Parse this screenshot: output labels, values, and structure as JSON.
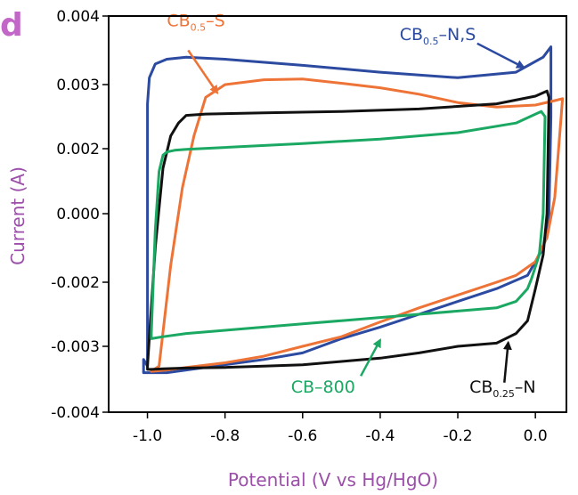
{
  "panel_label": "d",
  "chart_data": {
    "type": "line",
    "xlabel": "Potential (V vs Hg/HgO)",
    "ylabel": "Current  (A)",
    "xlim": [
      -1.1,
      0.08
    ],
    "ylim": [
      -0.004,
      0.004
    ],
    "x_ticks": [
      -1.0,
      -0.8,
      -0.6,
      -0.4,
      -0.2,
      0.0
    ],
    "x_tick_labels": [
      "-1.0",
      "-0.8",
      "-0.6",
      "-0.4",
      "-0.2",
      "0.0"
    ],
    "y_ticks": [
      -0.004,
      -0.003,
      -0.002,
      0.0,
      0.002,
      0.003,
      0.004
    ],
    "y_tick_labels": [
      "-0.004",
      "-0.003",
      "-0.002",
      "0.000",
      "0.002",
      "0.003",
      "0.004"
    ],
    "grid": false,
    "series": [
      {
        "name": "CB0.5–N,S",
        "color": "#2b4aa0",
        "x": [
          -1.0,
          -1.0,
          -0.995,
          -0.98,
          -0.95,
          -0.9,
          -0.8,
          -0.6,
          -0.4,
          -0.2,
          -0.05,
          0.02,
          0.04,
          0.04,
          0.035,
          0.02,
          -0.02,
          -0.1,
          -0.2,
          -0.3,
          -0.4,
          -0.5,
          -0.6,
          -0.7,
          -0.8,
          -0.9,
          -0.95,
          -0.99,
          -1.01,
          -1.01,
          -1.0
        ],
        "y": [
          -0.0033,
          0.0027,
          0.0031,
          0.0033,
          0.00337,
          0.0034,
          0.00337,
          0.00328,
          0.00318,
          0.0031,
          0.00318,
          0.0034,
          0.00355,
          0.0025,
          0.0,
          -0.001,
          -0.0018,
          -0.0021,
          -0.0023,
          -0.0025,
          -0.0027,
          -0.00288,
          -0.0031,
          -0.0032,
          -0.00328,
          -0.00336,
          -0.0034,
          -0.0034,
          -0.0034,
          -0.0032,
          -0.0033
        ]
      },
      {
        "name": "CB0.5–S",
        "color": "#ee7337",
        "x": [
          -0.97,
          -0.94,
          -0.91,
          -0.88,
          -0.85,
          -0.8,
          -0.7,
          -0.6,
          -0.5,
          -0.4,
          -0.3,
          -0.2,
          -0.1,
          0.0,
          0.05,
          0.07,
          0.065,
          0.05,
          0.03,
          0.0,
          -0.05,
          -0.1,
          -0.2,
          -0.3,
          -0.4,
          -0.5,
          -0.6,
          -0.7,
          -0.8,
          -0.9,
          -0.95,
          -0.99,
          -0.97
        ],
        "y": [
          -0.0033,
          -0.0015,
          0.0008,
          0.0022,
          0.0028,
          0.003,
          0.00307,
          0.00308,
          0.00302,
          0.00295,
          0.00285,
          0.00272,
          0.00265,
          0.00268,
          0.00275,
          0.00278,
          0.0024,
          0.0005,
          -0.0007,
          -0.0014,
          -0.0018,
          -0.002,
          -0.0022,
          -0.0024,
          -0.00262,
          -0.00285,
          -0.003,
          -0.00315,
          -0.00325,
          -0.00332,
          -0.00336,
          -0.00338,
          -0.0033
        ]
      },
      {
        "name": "CB0.25–N",
        "color": "#111111",
        "x": [
          -1.0,
          -0.98,
          -0.96,
          -0.94,
          -0.92,
          -0.9,
          -0.85,
          -0.7,
          -0.5,
          -0.3,
          -0.1,
          0.0,
          0.03,
          0.035,
          0.03,
          0.02,
          0.0,
          -0.02,
          -0.05,
          -0.1,
          -0.2,
          -0.3,
          -0.4,
          -0.5,
          -0.6,
          -0.7,
          -0.8,
          -0.9,
          -0.96,
          -0.99,
          -1.0,
          -1.0
        ],
        "y": [
          -0.0033,
          -0.001,
          0.0014,
          0.0022,
          0.0024,
          0.00252,
          0.00254,
          0.00256,
          0.00258,
          0.00262,
          0.0027,
          0.00282,
          0.0029,
          0.0028,
          0.0,
          -0.0012,
          -0.0021,
          -0.0026,
          -0.0028,
          -0.00295,
          -0.003,
          -0.0031,
          -0.00318,
          -0.00323,
          -0.00328,
          -0.0033,
          -0.00332,
          -0.00333,
          -0.00334,
          -0.00335,
          -0.00335,
          -0.0033
        ]
      },
      {
        "name": "CB–800",
        "color": "#1aa862",
        "x": [
          -0.99,
          -0.98,
          -0.97,
          -0.96,
          -0.95,
          -0.93,
          -0.9,
          -0.8,
          -0.6,
          -0.4,
          -0.2,
          -0.05,
          0.015,
          0.025,
          0.02,
          0.01,
          -0.01,
          -0.02,
          -0.05,
          -0.1,
          -0.2,
          -0.3,
          -0.4,
          -0.5,
          -0.6,
          -0.7,
          -0.8,
          -0.9,
          -0.96,
          -0.99,
          -0.99
        ],
        "y": [
          -0.0028,
          -0.0005,
          0.0013,
          0.0018,
          0.0019,
          0.00195,
          0.00198,
          0.00202,
          0.00208,
          0.00215,
          0.00225,
          0.0024,
          0.00258,
          0.0025,
          0.0,
          -0.0012,
          -0.0019,
          -0.0021,
          -0.0023,
          -0.0024,
          -0.00245,
          -0.0025,
          -0.00255,
          -0.0026,
          -0.00265,
          -0.0027,
          -0.00275,
          -0.0028,
          -0.00285,
          -0.00288,
          -0.0028
        ]
      }
    ],
    "annotations": [
      {
        "label_main": "CB",
        "label_sub": "0.5",
        "label_rest": "–S",
        "color": "#ee7337",
        "label_x": -0.95,
        "label_y": 0.00385,
        "arrow_from": [
          -0.895,
          0.0035
        ],
        "arrow_to": [
          -0.82,
          0.00287
        ]
      },
      {
        "label_main": "CB",
        "label_sub": "0.5",
        "label_rest": "–N,S",
        "color": "#2b4aa0",
        "label_x": -0.35,
        "label_y": 0.00365,
        "arrow_from": [
          -0.15,
          0.0036
        ],
        "arrow_to": [
          -0.03,
          0.00325
        ]
      },
      {
        "label_main": "CB–800",
        "label_sub": "",
        "label_rest": "",
        "color": "#1aa862",
        "label_x": -0.63,
        "label_y": -0.0037,
        "arrow_from": [
          -0.45,
          -0.00345
        ],
        "arrow_to": [
          -0.4,
          -0.0029
        ]
      },
      {
        "label_main": "CB",
        "label_sub": "0.25",
        "label_rest": "–N",
        "color": "#111111",
        "label_x": -0.17,
        "label_y": -0.0037,
        "arrow_from": [
          -0.08,
          -0.00355
        ],
        "arrow_to": [
          -0.07,
          -0.00294
        ]
      }
    ]
  }
}
